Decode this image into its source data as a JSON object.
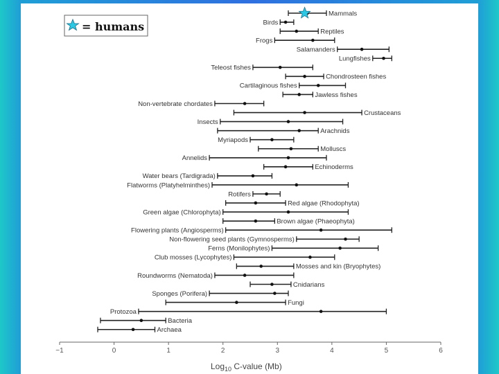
{
  "legend": {
    "text": "= humans",
    "marker_color": "#29c9e6"
  },
  "chart_data": {
    "type": "errorbar",
    "xlabel_main": "Log",
    "xlabel_sub": "10",
    "xlabel_rest": " C-value (Mb)",
    "xlim": [
      -1,
      6
    ],
    "xticks": [
      -1,
      0,
      1,
      2,
      3,
      4,
      5,
      6
    ],
    "humans_value": 3.5,
    "series": [
      {
        "label": "Mammals",
        "low": 3.2,
        "high": 3.9,
        "point": 3.55,
        "side": "right"
      },
      {
        "label": "Birds",
        "low": 3.05,
        "high": 3.3,
        "point": 3.15,
        "side": "left"
      },
      {
        "label": "Reptiles",
        "low": 3.05,
        "high": 3.75,
        "point": 3.35,
        "side": "right"
      },
      {
        "label": "Frogs",
        "low": 2.95,
        "high": 4.05,
        "point": 3.65,
        "side": "left"
      },
      {
        "label": "Salamanders",
        "low": 4.1,
        "high": 5.05,
        "point": 4.55,
        "side": "left"
      },
      {
        "label": "Lungfishes",
        "low": 4.75,
        "high": 5.1,
        "point": 4.95,
        "side": "left"
      },
      {
        "label": "Teleost fishes",
        "low": 2.55,
        "high": 3.65,
        "point": 3.05,
        "side": "left"
      },
      {
        "label": "Chondrosteen fishes",
        "low": 3.15,
        "high": 3.85,
        "point": 3.5,
        "side": "right"
      },
      {
        "label": "Cartilaginous fishes",
        "low": 3.4,
        "high": 4.25,
        "point": 3.75,
        "side": "left"
      },
      {
        "label": "Jawless fishes",
        "low": 3.1,
        "high": 3.65,
        "point": 3.4,
        "side": "right"
      },
      {
        "label": "Non-vertebrate chordates",
        "low": 1.85,
        "high": 2.75,
        "point": 2.4,
        "side": "left"
      },
      {
        "label": "Crustaceans",
        "low": 2.2,
        "high": 4.55,
        "point": 3.5,
        "side": "right"
      },
      {
        "label": "Insects",
        "low": 1.95,
        "high": 4.2,
        "point": 3.2,
        "side": "left"
      },
      {
        "label": "Arachnids",
        "low": 1.9,
        "high": 3.75,
        "point": 3.4,
        "side": "right"
      },
      {
        "label": "Myriapods",
        "low": 2.5,
        "high": 3.3,
        "point": 2.9,
        "side": "left"
      },
      {
        "label": "Molluscs",
        "low": 2.65,
        "high": 3.75,
        "point": 3.25,
        "side": "right"
      },
      {
        "label": "Annelids",
        "low": 1.75,
        "high": 3.9,
        "point": 3.2,
        "side": "left"
      },
      {
        "label": "Echinoderms",
        "low": 2.75,
        "high": 3.65,
        "point": 3.15,
        "side": "right"
      },
      {
        "label": "Water bears (Tardigrada)",
        "low": 1.9,
        "high": 2.9,
        "point": 2.55,
        "side": "left"
      },
      {
        "label": "Flatworms (Platyhelminthes)",
        "low": 1.8,
        "high": 4.3,
        "point": 3.35,
        "side": "left"
      },
      {
        "label": "Rotifers",
        "low": 2.55,
        "high": 3.05,
        "point": 2.8,
        "side": "left"
      },
      {
        "label": "Red algae (Rhodophyta)",
        "low": 2.05,
        "high": 3.15,
        "point": 2.6,
        "side": "right"
      },
      {
        "label": "Green algae (Chlorophyta)",
        "low": 2.0,
        "high": 4.3,
        "point": 3.2,
        "side": "left"
      },
      {
        "label": "Brown algae (Phaeophyta)",
        "low": 2.0,
        "high": 2.95,
        "point": 2.6,
        "side": "right"
      },
      {
        "label": "Flowering plants (Angiosperms)",
        "low": 2.05,
        "high": 5.1,
        "point": 3.8,
        "side": "left"
      },
      {
        "label": "Non-flowering seed plants (Gymnosperms)",
        "low": 3.35,
        "high": 4.5,
        "point": 4.25,
        "side": "left"
      },
      {
        "label": "Ferns (Monilophytes)",
        "low": 2.9,
        "high": 4.85,
        "point": 4.15,
        "side": "left"
      },
      {
        "label": "Club mosses (Lycophytes)",
        "low": 2.2,
        "high": 4.05,
        "point": 3.6,
        "side": "left"
      },
      {
        "label": "Mosses and kin (Bryophytes)",
        "low": 2.25,
        "high": 3.3,
        "point": 2.7,
        "side": "right"
      },
      {
        "label": "Roundworms (Nematoda)",
        "low": 1.85,
        "high": 3.3,
        "point": 2.4,
        "side": "left"
      },
      {
        "label": "Cnidarians",
        "low": 2.5,
        "high": 3.25,
        "point": 2.9,
        "side": "right"
      },
      {
        "label": "Sponges (Porifera)",
        "low": 1.75,
        "high": 3.2,
        "point": 2.95,
        "side": "left"
      },
      {
        "label": "Fungi",
        "low": 0.95,
        "high": 3.15,
        "point": 2.25,
        "side": "right"
      },
      {
        "label": "Protozoa",
        "low": 0.45,
        "high": 5.0,
        "point": 3.8,
        "side": "left"
      },
      {
        "label": "Bacteria",
        "low": -0.25,
        "high": 0.95,
        "point": 0.5,
        "side": "right"
      },
      {
        "label": "Archaea",
        "low": -0.3,
        "high": 0.75,
        "point": 0.35,
        "side": "right"
      }
    ]
  }
}
